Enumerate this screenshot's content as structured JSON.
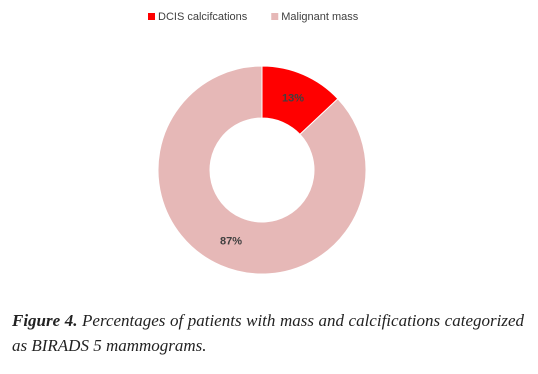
{
  "chart_data": {
    "type": "pie",
    "donut": true,
    "categories": [
      "DCIS calcifcations",
      "Malignant mass"
    ],
    "values": [
      13,
      87
    ],
    "value_labels": [
      "13%",
      "87%"
    ],
    "colors": [
      "#ff0000",
      "#e6b8b7"
    ],
    "legend": "top"
  },
  "caption": {
    "label": "Figure 4.",
    "text": "Percentages of patients with mass and calcifications categorized as BIRADS 5 mammograms."
  }
}
